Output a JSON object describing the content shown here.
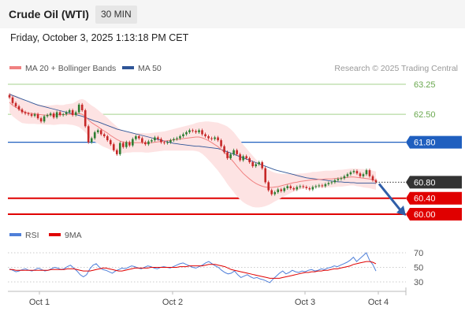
{
  "header": {
    "title": "Crude Oil (WTI)",
    "timeframe": "30 MIN",
    "datetime": "Friday, October 3, 2025 1:13:18 PM CET"
  },
  "legend": {
    "ma20": "MA 20 + Bollinger Bands",
    "ma50": "MA 50",
    "credit": "Research © 2025 Trading Central",
    "ma20_color": "#f08080",
    "ma50_color": "#2f5597"
  },
  "chart_data": [
    {
      "type": "candlestick",
      "title": "Crude Oil (WTI)",
      "x_labels": [
        "Oct 1",
        "Oct 2",
        "Oct 3",
        "Oct 4"
      ],
      "ylim": [
        59.8,
        63.4
      ],
      "y_ticks": [
        {
          "value": 63.25,
          "label": "63.25",
          "color": "#6aa84f",
          "style": "text"
        },
        {
          "value": 62.5,
          "label": "62.50",
          "color": "#6aa84f",
          "style": "text"
        },
        {
          "value": 61.8,
          "label": "61.80",
          "color": "#1f5fbf",
          "style": "box"
        },
        {
          "value": 60.8,
          "label": "60.80",
          "color": "#333333",
          "style": "box"
        },
        {
          "value": 60.4,
          "label": "60.40",
          "color": "#e00000",
          "style": "box"
        },
        {
          "value": 60.0,
          "label": "60.00",
          "color": "#e00000",
          "style": "box"
        }
      ],
      "levels": [
        {
          "value": 63.25,
          "color": "#a4d08c",
          "width": 1
        },
        {
          "value": 62.5,
          "color": "#a4d08c",
          "width": 1
        },
        {
          "value": 61.8,
          "color": "#1f5fbf",
          "width": 1.2
        },
        {
          "value": 60.4,
          "color": "#e00000",
          "width": 2
        },
        {
          "value": 60.0,
          "color": "#e00000",
          "width": 2
        }
      ],
      "last_price": 60.8,
      "close": [
        62.92,
        62.78,
        62.7,
        62.62,
        62.55,
        62.52,
        62.5,
        62.46,
        62.5,
        62.4,
        62.32,
        62.45,
        62.48,
        62.52,
        62.42,
        62.55,
        62.48,
        62.5,
        62.55,
        62.6,
        62.48,
        62.55,
        62.74,
        62.6,
        62.2,
        61.8,
        61.9,
        62.05,
        62.1,
        62.0,
        61.95,
        61.85,
        61.75,
        61.6,
        61.5,
        61.78,
        61.68,
        61.8,
        61.72,
        61.88,
        61.95,
        61.9,
        61.8,
        61.75,
        61.82,
        61.85,
        61.92,
        61.88,
        61.8,
        61.78,
        61.8,
        61.85,
        61.88,
        61.9,
        61.95,
        62.0,
        62.05,
        62.1,
        62.08,
        62.05,
        62.1,
        62.0,
        61.95,
        61.9,
        61.88,
        61.92,
        61.85,
        61.7,
        61.55,
        61.4,
        61.5,
        61.6,
        61.5,
        61.35,
        61.45,
        61.4,
        61.3,
        61.2,
        61.25,
        61.3,
        61.15,
        60.8,
        60.6,
        60.5,
        60.55,
        60.62,
        60.58,
        60.65,
        60.7,
        60.65,
        60.62,
        60.68,
        60.7,
        60.68,
        60.65,
        60.62,
        60.68,
        60.7,
        60.72,
        60.7,
        60.75,
        60.78,
        60.8,
        60.85,
        60.88,
        60.9,
        60.95,
        61.0,
        61.05,
        61.08,
        61.02,
        60.95,
        61.0,
        61.1,
        60.95,
        60.85,
        60.8
      ],
      "ma20": [
        62.8,
        62.72,
        62.68,
        62.63,
        62.58,
        62.55,
        62.53,
        62.52,
        62.51,
        62.5,
        62.49,
        62.48,
        62.48,
        62.48,
        62.48,
        62.49,
        62.49,
        62.49,
        62.5,
        62.5,
        62.5,
        62.51,
        62.52,
        62.5,
        62.45,
        62.36,
        62.29,
        62.24,
        62.19,
        62.13,
        62.08,
        62.03,
        61.97,
        61.92,
        61.87,
        61.83,
        61.8,
        61.8,
        61.79,
        61.79,
        61.79,
        61.79,
        61.79,
        61.78,
        61.78,
        61.79,
        61.8,
        61.81,
        61.82,
        61.83,
        61.84,
        61.85,
        61.86,
        61.87,
        61.88,
        61.89,
        61.9,
        61.91,
        61.92,
        61.93,
        61.93,
        61.91,
        61.88,
        61.84,
        61.79,
        61.74,
        61.69,
        61.62,
        61.55,
        61.47,
        61.39,
        61.3,
        61.2,
        61.11,
        61.02,
        60.95,
        60.88,
        60.82,
        60.77,
        60.73,
        60.7,
        60.68,
        60.67,
        60.67,
        60.68,
        60.69,
        60.71,
        60.73,
        60.75,
        60.77,
        60.79,
        60.8,
        60.82,
        60.83,
        60.84,
        60.85,
        60.86,
        60.86,
        60.87,
        60.87,
        60.88,
        60.88,
        60.88,
        60.89,
        60.9,
        60.9,
        60.91,
        60.92,
        60.93,
        60.93,
        60.92,
        60.91,
        60.9,
        60.89,
        60.88,
        60.86,
        60.84
      ],
      "ma50": [
        63.0,
        62.97,
        62.94,
        62.91,
        62.88,
        62.85,
        62.82,
        62.79,
        62.76,
        62.73,
        62.71,
        62.69,
        62.67,
        62.65,
        62.63,
        62.61,
        62.59,
        62.57,
        62.55,
        62.53,
        62.51,
        62.49,
        62.47,
        62.45,
        62.42,
        62.39,
        62.36,
        62.33,
        62.31,
        62.28,
        62.25,
        62.22,
        62.19,
        62.16,
        62.13,
        62.11,
        62.09,
        62.07,
        62.05,
        62.03,
        62.01,
        61.99,
        61.97,
        61.95,
        61.93,
        61.91,
        61.89,
        61.87,
        61.85,
        61.83,
        61.81,
        61.79,
        61.77,
        61.76,
        61.75,
        61.74,
        61.73,
        61.72,
        61.71,
        61.7,
        61.7,
        61.69,
        61.68,
        61.67,
        61.66,
        61.65,
        61.64,
        61.62,
        61.59,
        61.56,
        61.53,
        61.5,
        61.47,
        61.44,
        61.41,
        61.38,
        61.35,
        61.32,
        61.29,
        61.26,
        61.23,
        61.2,
        61.17,
        61.14,
        61.11,
        61.09,
        61.07,
        61.05,
        61.03,
        61.01,
        60.99,
        60.97,
        60.95,
        60.93,
        60.91,
        60.9,
        60.89,
        60.88,
        60.87,
        60.86,
        60.85,
        60.84,
        60.83,
        60.82,
        60.81,
        60.81,
        60.8,
        60.8,
        60.79,
        60.79,
        60.78,
        60.78,
        60.78,
        60.78,
        60.78,
        60.78,
        60.77
      ],
      "bb_width": [
        0.25,
        0.27,
        0.29,
        0.3,
        0.3,
        0.28,
        0.27,
        0.26,
        0.25,
        0.25,
        0.24,
        0.24,
        0.24,
        0.24,
        0.25,
        0.25,
        0.24,
        0.24,
        0.25,
        0.26,
        0.27,
        0.3,
        0.34,
        0.38,
        0.4,
        0.42,
        0.43,
        0.43,
        0.42,
        0.41,
        0.4,
        0.38,
        0.36,
        0.34,
        0.32,
        0.3,
        0.28,
        0.26,
        0.25,
        0.24,
        0.24,
        0.24,
        0.24,
        0.24,
        0.24,
        0.24,
        0.24,
        0.24,
        0.24,
        0.24,
        0.25,
        0.26,
        0.27,
        0.28,
        0.29,
        0.3,
        0.31,
        0.32,
        0.33,
        0.35,
        0.37,
        0.4,
        0.44,
        0.48,
        0.52,
        0.56,
        0.6,
        0.64,
        0.68,
        0.72,
        0.74,
        0.75,
        0.75,
        0.74,
        0.72,
        0.7,
        0.67,
        0.64,
        0.6,
        0.56,
        0.52,
        0.48,
        0.44,
        0.4,
        0.36,
        0.33,
        0.3,
        0.28,
        0.26,
        0.24,
        0.22,
        0.21,
        0.2,
        0.19,
        0.19,
        0.19,
        0.2,
        0.2,
        0.2,
        0.21,
        0.21,
        0.21,
        0.21,
        0.21,
        0.21,
        0.21,
        0.21,
        0.21,
        0.21,
        0.21,
        0.22,
        0.22,
        0.23,
        0.23,
        0.23,
        0.23,
        0.23
      ],
      "forecast": {
        "from": 60.8,
        "to": 60.0
      }
    },
    {
      "type": "line",
      "title": "RSI",
      "series": [
        {
          "name": "RSI",
          "color": "#4f7fd9",
          "values": [
            48,
            46,
            44,
            45,
            47,
            48,
            46,
            45,
            47,
            49,
            47,
            45,
            46,
            48,
            50,
            49,
            47,
            48,
            51,
            53,
            49,
            45,
            40,
            37,
            40,
            48,
            53,
            55,
            50,
            47,
            46,
            44,
            42,
            45,
            47,
            49,
            48,
            50,
            52,
            51,
            49,
            48,
            50,
            52,
            51,
            49,
            48,
            50,
            51,
            50,
            49,
            51,
            53,
            55,
            56,
            54,
            52,
            50,
            49,
            51,
            53,
            56,
            58,
            55,
            52,
            50,
            46,
            43,
            41,
            42,
            45,
            40,
            36,
            38,
            40,
            37,
            35,
            36,
            34,
            33,
            31,
            29,
            34,
            38,
            42,
            45,
            41,
            43,
            46,
            44,
            43,
            45,
            44,
            46,
            47,
            45,
            46,
            48,
            47,
            49,
            50,
            52,
            51,
            53,
            55,
            57,
            60,
            64,
            58,
            62,
            66,
            70,
            60,
            54,
            45
          ]
        },
        {
          "name": "9MA",
          "color": "#e00000",
          "values": [
            47,
            47,
            46,
            46,
            46,
            46,
            46,
            46,
            46,
            46,
            46,
            46,
            46,
            47,
            47,
            47,
            47,
            47,
            48,
            48,
            48,
            47,
            46,
            45,
            45,
            45,
            46,
            47,
            48,
            49,
            49,
            48,
            47,
            46,
            45,
            45,
            46,
            47,
            48,
            49,
            49,
            49,
            49,
            49,
            50,
            50,
            50,
            50,
            50,
            50,
            50,
            50,
            50,
            51,
            51,
            51,
            52,
            52,
            52,
            52,
            52,
            53,
            54,
            54,
            54,
            53,
            52,
            51,
            49,
            47,
            46,
            45,
            44,
            43,
            42,
            41,
            40,
            39,
            38,
            37,
            36,
            35,
            35,
            35,
            35,
            36,
            37,
            38,
            39,
            40,
            41,
            42,
            43,
            43,
            44,
            44,
            45,
            45,
            46,
            46,
            47,
            48,
            48,
            49,
            50,
            51,
            52,
            54,
            55,
            56,
            57,
            58,
            58,
            57,
            55
          ]
        }
      ],
      "ylim": [
        20,
        80
      ],
      "y_ticks": [
        70,
        50,
        30
      ]
    }
  ],
  "rsi_legend": {
    "rsi": "RSI",
    "ma9": "9MA"
  }
}
